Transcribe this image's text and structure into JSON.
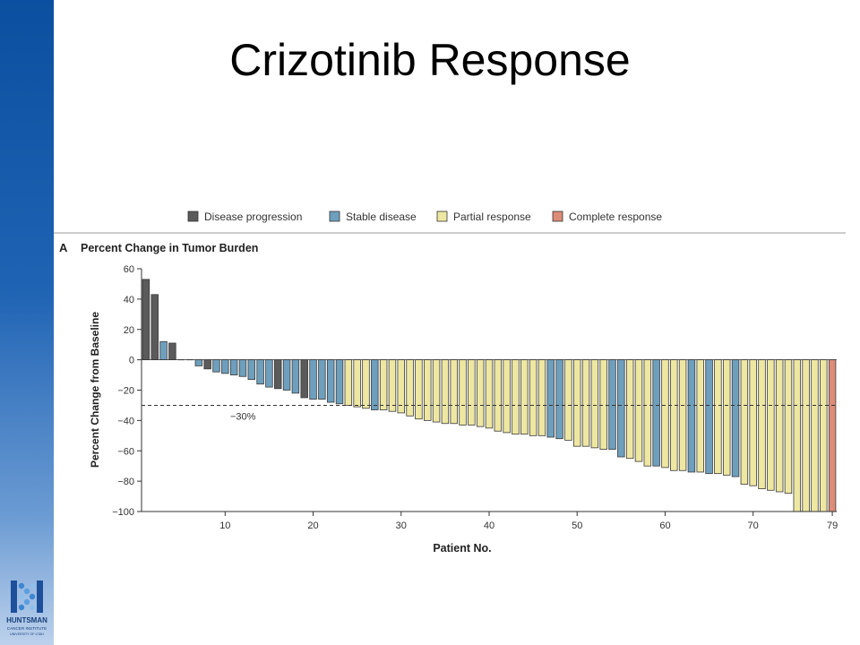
{
  "slide": {
    "title": "Crizotinib Response"
  },
  "logo": {
    "line1": "HUNTSMAN",
    "line2": "CANCER INSTITUTE",
    "line3": "UNIVERSITY OF UTAH",
    "icon": "dna-helix-icon"
  },
  "colors": {
    "Disease progression": "#5b5b5b",
    "Stable disease": "#6e9fbd",
    "Partial response": "#eee7a2",
    "Complete response": "#dc8c78"
  },
  "chart_data": {
    "type": "bar",
    "panel_label": "A",
    "title": "Percent Change in Tumor Burden",
    "xlabel": "Patient No.",
    "ylabel": "Percent Change from Baseline",
    "ylim": [
      -100,
      60
    ],
    "yticks": [
      "60",
      "40",
      "20",
      "0",
      "−20",
      "−40",
      "−60",
      "−80",
      "−100"
    ],
    "xticks": [
      "10",
      "20",
      "30",
      "40",
      "50",
      "60",
      "70",
      "79"
    ],
    "reference_line": {
      "value": -30,
      "label": "−30%"
    },
    "legend": [
      "Disease progression",
      "Stable disease",
      "Partial response",
      "Complete response"
    ],
    "patients": [
      1,
      2,
      3,
      4,
      5,
      6,
      7,
      8,
      9,
      10,
      11,
      12,
      13,
      14,
      15,
      16,
      17,
      18,
      19,
      20,
      21,
      22,
      23,
      24,
      25,
      26,
      27,
      28,
      29,
      30,
      31,
      32,
      33,
      34,
      35,
      36,
      37,
      38,
      39,
      40,
      41,
      42,
      43,
      44,
      45,
      46,
      47,
      48,
      49,
      50,
      51,
      52,
      53,
      54,
      55,
      56,
      57,
      58,
      59,
      60,
      61,
      62,
      63,
      64,
      65,
      66,
      67,
      68,
      69,
      70,
      71,
      72,
      73,
      74,
      75,
      76,
      77,
      78,
      79
    ],
    "values": [
      53,
      43,
      12,
      11,
      0,
      0,
      -4,
      -6,
      -8,
      -9,
      -10,
      -11,
      -13,
      -16,
      -18,
      -19,
      -20,
      -22,
      -25,
      -26,
      -26,
      -28,
      -29,
      -30,
      -31,
      -32,
      -33,
      -33,
      -34,
      -35,
      -37,
      -39,
      -40,
      -41,
      -42,
      -42,
      -43,
      -43,
      -44,
      -45,
      -47,
      -48,
      -49,
      -49,
      -50,
      -50,
      -51,
      -52,
      -53,
      -57,
      -57,
      -58,
      -59,
      -59,
      -64,
      -65,
      -67,
      -70,
      -70,
      -71,
      -73,
      -73,
      -74,
      -74,
      -75,
      -75,
      -76,
      -77,
      -82,
      -83,
      -85,
      -86,
      -87,
      -88,
      -100,
      -100,
      -100,
      -100,
      -100
    ],
    "categories": [
      "Disease progression",
      "Disease progression",
      "Stable disease",
      "Disease progression",
      "Stable disease",
      "Stable disease",
      "Stable disease",
      "Disease progression",
      "Stable disease",
      "Stable disease",
      "Stable disease",
      "Stable disease",
      "Stable disease",
      "Stable disease",
      "Stable disease",
      "Disease progression",
      "Stable disease",
      "Stable disease",
      "Disease progression",
      "Stable disease",
      "Stable disease",
      "Stable disease",
      "Stable disease",
      "Partial response",
      "Partial response",
      "Partial response",
      "Stable disease",
      "Partial response",
      "Partial response",
      "Partial response",
      "Partial response",
      "Partial response",
      "Partial response",
      "Partial response",
      "Partial response",
      "Partial response",
      "Partial response",
      "Partial response",
      "Partial response",
      "Partial response",
      "Partial response",
      "Partial response",
      "Partial response",
      "Partial response",
      "Partial response",
      "Partial response",
      "Stable disease",
      "Stable disease",
      "Partial response",
      "Partial response",
      "Partial response",
      "Partial response",
      "Partial response",
      "Stable disease",
      "Stable disease",
      "Partial response",
      "Partial response",
      "Partial response",
      "Stable disease",
      "Partial response",
      "Partial response",
      "Partial response",
      "Stable disease",
      "Partial response",
      "Stable disease",
      "Partial response",
      "Partial response",
      "Stable disease",
      "Partial response",
      "Partial response",
      "Partial response",
      "Partial response",
      "Partial response",
      "Partial response",
      "Partial response",
      "Partial response",
      "Partial response",
      "Partial response",
      "Complete response"
    ],
    "grid": false,
    "legend_position": "top"
  }
}
